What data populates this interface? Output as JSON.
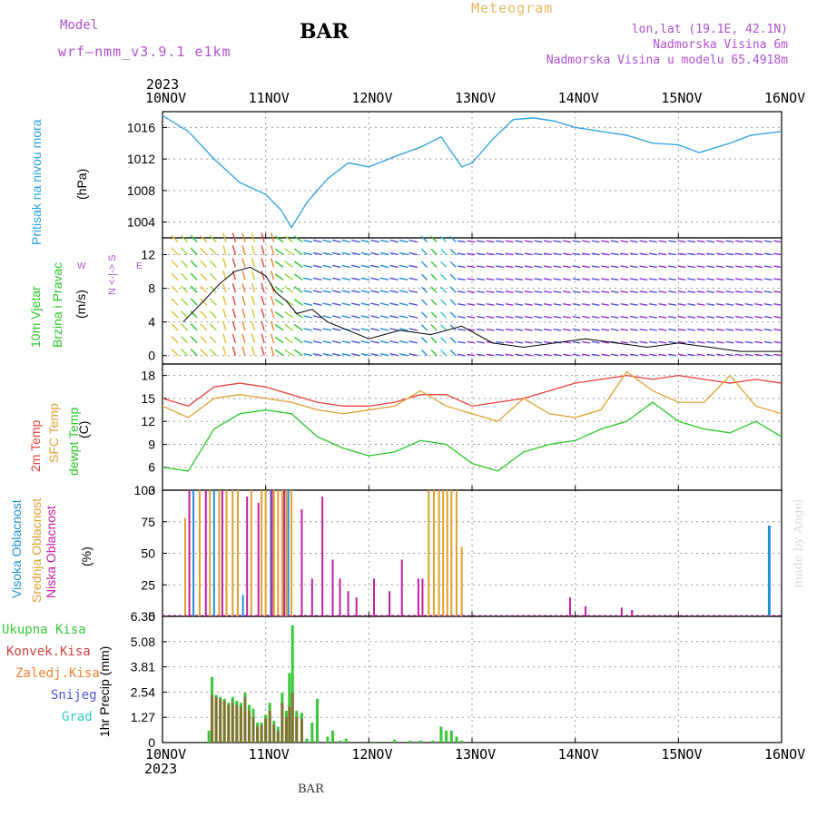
{
  "header": {
    "model_label": "Model",
    "model_name": "wrf—nmm_v3.9.1 e1km",
    "station": "BAR",
    "title": "Meteogram",
    "lonlat": "lon,lat (19.1E, 42.1N)",
    "elevation": "Nadmorska Visina 6m",
    "model_elevation": "Nadmorska Visina u modelu 65.4918m",
    "footer_station": "BAR",
    "watermark": "made by Angel"
  },
  "colors": {
    "pressure": "#29a0e0",
    "temp2m": "#e8403c",
    "sfc": "#e0a030",
    "dewpt": "#28c828",
    "rain_total": "#38c838",
    "rain_conv": "#d04040",
    "frozen": "#f08030",
    "snow": "#5050e0",
    "graupel": "#30c8c8",
    "purple": "#b050d0",
    "cloud_high": "#2090d8",
    "cloud_mid": "#e0a030",
    "cloud_low": "#c020a0"
  },
  "time_axis": {
    "year": "2023",
    "labels": [
      "10NOV",
      "11NOV",
      "12NOV",
      "13NOV",
      "14NOV",
      "15NOV",
      "16NOV"
    ]
  },
  "panels": {
    "pressure": {
      "label": "Pritisak na nivou mora",
      "unit": "(hPa)"
    },
    "wind": {
      "label1": "10m Vjetar",
      "label2": "Brzina i Pravac",
      "unit": "(m/s)",
      "compass": "N <-|-> S",
      "west": "W",
      "east": "E"
    },
    "temp": {
      "label1": "2m Temp",
      "label2": "SFC Temp",
      "label3": "dewpt Temp",
      "unit": "(C)"
    },
    "cloud": {
      "label1": "Visoka Oblacnost",
      "label2": "Srednja Oblacnost",
      "label3": "Niska Oblacnost",
      "unit": "(%)"
    },
    "precip": {
      "label": "1hr Precip (mm)",
      "legend": [
        "Ukupna Kisa",
        "Konvek.Kisa",
        "Zaledj.Kisa",
        "Snijeg",
        "Grad"
      ]
    }
  },
  "chart_data": [
    {
      "type": "line",
      "title": "Pritisak na nivou mora",
      "ylabel": "(hPa)",
      "ylim": [
        1002,
        1018
      ],
      "yticks": [
        "1004",
        "1008",
        "1012",
        "1016"
      ],
      "x_days": [
        0.0,
        0.25,
        0.5,
        0.75,
        1.0,
        1.15,
        1.25,
        1.4,
        1.6,
        1.8,
        2.0,
        2.25,
        2.5,
        2.7,
        2.9,
        3.0,
        3.2,
        3.4,
        3.6,
        3.8,
        4.0,
        4.25,
        4.5,
        4.75,
        5.0,
        5.2,
        5.5,
        5.7,
        6.0
      ],
      "series": [
        {
          "name": "Pritisak na nivou mora",
          "values": [
            1017.5,
            1015.5,
            1012.0,
            1009.0,
            1007.5,
            1005.5,
            1003.3,
            1006.5,
            1009.5,
            1011.5,
            1011.0,
            1012.3,
            1013.5,
            1014.8,
            1011.0,
            1011.5,
            1014.5,
            1017.0,
            1017.2,
            1016.8,
            1016.0,
            1015.5,
            1015.0,
            1014.0,
            1013.8,
            1012.8,
            1014.0,
            1015.0,
            1015.5
          ]
        }
      ]
    },
    {
      "type": "line",
      "title": "10m Vjetar Brzina i Pravac",
      "ylabel": "(m/s)",
      "ylim": [
        -1,
        14
      ],
      "yticks": [
        "0",
        "4",
        "8",
        "12"
      ],
      "x_days": [
        0.2,
        0.4,
        0.55,
        0.7,
        0.85,
        1.0,
        1.1,
        1.2,
        1.3,
        1.45,
        1.6,
        1.8,
        2.0,
        2.3,
        2.6,
        2.9,
        3.2,
        3.5,
        3.8,
        4.1,
        4.4,
        4.7,
        5.0,
        5.3,
        5.6,
        6.0
      ],
      "series": [
        {
          "name": "10m Vjetar",
          "values": [
            4.0,
            6.5,
            8.5,
            10.0,
            10.5,
            9.5,
            7.5,
            6.5,
            5.0,
            5.5,
            4.0,
            3.0,
            2.0,
            3.0,
            2.5,
            3.5,
            1.5,
            1.0,
            1.5,
            2.0,
            1.5,
            1.0,
            1.5,
            1.0,
            0.5,
            0.5
          ]
        }
      ]
    },
    {
      "type": "line",
      "title": "2m Temp / SFC Temp / dewpt Temp",
      "ylabel": "(C)",
      "ylim": [
        3,
        19.5
      ],
      "yticks": [
        "3",
        "6",
        "9",
        "12",
        "15",
        "18"
      ],
      "x_days": [
        0.0,
        0.25,
        0.5,
        0.75,
        1.0,
        1.25,
        1.5,
        1.75,
        2.0,
        2.25,
        2.5,
        2.75,
        3.0,
        3.25,
        3.5,
        3.75,
        4.0,
        4.25,
        4.5,
        4.75,
        5.0,
        5.25,
        5.5,
        5.75,
        6.0
      ],
      "series": [
        {
          "name": "2m Temp",
          "values": [
            15.0,
            14.0,
            16.5,
            17.0,
            16.5,
            15.5,
            14.5,
            14.0,
            14.0,
            14.5,
            15.5,
            15.5,
            14.0,
            14.5,
            15.0,
            16.0,
            17.0,
            17.5,
            18.0,
            17.5,
            18.0,
            17.5,
            17.0,
            17.5,
            17.0
          ]
        },
        {
          "name": "SFC Temp",
          "values": [
            14.0,
            12.5,
            15.0,
            15.5,
            15.0,
            14.5,
            13.5,
            13.0,
            13.5,
            14.0,
            16.0,
            14.0,
            13.0,
            12.0,
            15.0,
            13.0,
            12.5,
            13.5,
            18.5,
            16.0,
            14.5,
            14.5,
            18.0,
            14.0,
            13.0
          ]
        },
        {
          "name": "dewpt Temp",
          "values": [
            6.0,
            5.5,
            11.0,
            13.0,
            13.5,
            13.0,
            10.0,
            8.5,
            7.5,
            8.0,
            9.5,
            9.0,
            6.5,
            5.5,
            8.0,
            9.0,
            9.5,
            11.0,
            12.0,
            14.5,
            12.0,
            11.0,
            10.5,
            12.0,
            10.0
          ]
        }
      ]
    },
    {
      "type": "bar",
      "title": "Visoka / Srednja / Niska Oblacnost",
      "ylabel": "(%)",
      "ylim": [
        0,
        100
      ],
      "yticks": [
        "0",
        "25",
        "50",
        "75",
        "100"
      ],
      "series": [
        {
          "name": "Visoka Oblacnost",
          "x_days": [
            0.3,
            0.5,
            0.78,
            1.05,
            1.22,
            5.88
          ],
          "values": [
            100,
            100,
            17,
            100,
            100,
            72
          ]
        },
        {
          "name": "Srednja Oblacnost",
          "x_days": [
            0.22,
            0.36,
            0.46,
            0.55,
            0.62,
            0.68,
            0.73,
            0.86,
            0.96,
            1.0,
            1.08,
            1.12,
            1.16,
            1.2,
            1.25,
            2.58,
            2.63,
            2.68,
            2.72,
            2.76,
            2.8,
            2.85,
            2.9
          ],
          "values": [
            78,
            100,
            100,
            100,
            100,
            100,
            100,
            100,
            100,
            100,
            100,
            100,
            100,
            100,
            100,
            100,
            100,
            100,
            100,
            100,
            100,
            100,
            55
          ]
        },
        {
          "name": "Niska Oblacnost",
          "x_days": [
            0.26,
            0.42,
            0.58,
            0.82,
            0.93,
            1.06,
            1.18,
            1.35,
            1.45,
            1.55,
            1.65,
            1.72,
            1.8,
            1.88,
            2.05,
            2.2,
            2.32,
            2.48,
            2.52,
            3.95,
            4.1,
            4.45,
            4.55
          ],
          "values": [
            100,
            100,
            100,
            95,
            90,
            100,
            100,
            85,
            30,
            95,
            45,
            30,
            20,
            15,
            30,
            20,
            45,
            30,
            30,
            15,
            8,
            7,
            5
          ]
        }
      ]
    },
    {
      "type": "bar",
      "title": "1hr Precip",
      "ylabel": "(mm)",
      "ylim": [
        0,
        6.35
      ],
      "yticks": [
        "0",
        "1.27",
        "2.54",
        "3.81",
        "5.08",
        "6.35"
      ],
      "series": [
        {
          "name": "Ukupna Kisa",
          "x_days": [
            0.45,
            0.48,
            0.52,
            0.56,
            0.6,
            0.64,
            0.68,
            0.72,
            0.76,
            0.8,
            0.84,
            0.88,
            0.92,
            0.96,
            1.0,
            1.04,
            1.08,
            1.12,
            1.16,
            1.2,
            1.23,
            1.26,
            1.3,
            1.35,
            1.4,
            1.45,
            1.5,
            1.6,
            1.65,
            1.72,
            1.78,
            2.05,
            2.25,
            2.4,
            2.5,
            2.62,
            2.7,
            2.75,
            2.8,
            2.85,
            2.9
          ],
          "values": [
            0.6,
            3.3,
            2.4,
            2.3,
            2.2,
            2.0,
            2.3,
            2.1,
            2.0,
            2.5,
            1.9,
            1.7,
            1.0,
            1.0,
            1.4,
            2.0,
            1.1,
            0.8,
            2.5,
            1.6,
            3.5,
            5.9,
            1.6,
            1.5,
            0.2,
            1.0,
            2.2,
            0.3,
            0.6,
            0.1,
            0.2,
            0.05,
            0.15,
            0.1,
            0.1,
            0.1,
            0.8,
            0.6,
            0.6,
            0.3,
            0.1
          ]
        },
        {
          "name": "Konvek.Kisa",
          "x_days": [
            0.48,
            0.52,
            0.56,
            0.6,
            0.64,
            0.68,
            0.72,
            0.76,
            0.8,
            0.84,
            0.88,
            0.92,
            0.96,
            1.0,
            1.04,
            1.08,
            1.12,
            1.16,
            1.2,
            1.23,
            1.26,
            1.3,
            1.35
          ],
          "values": [
            2.4,
            2.3,
            2.2,
            2.1,
            1.9,
            2.0,
            1.9,
            1.8,
            2.3,
            1.6,
            1.3,
            0.8,
            0.9,
            1.2,
            1.6,
            0.9,
            0.6,
            2.0,
            1.3,
            1.8,
            2.5,
            1.3,
            1.2
          ]
        }
      ]
    }
  ]
}
